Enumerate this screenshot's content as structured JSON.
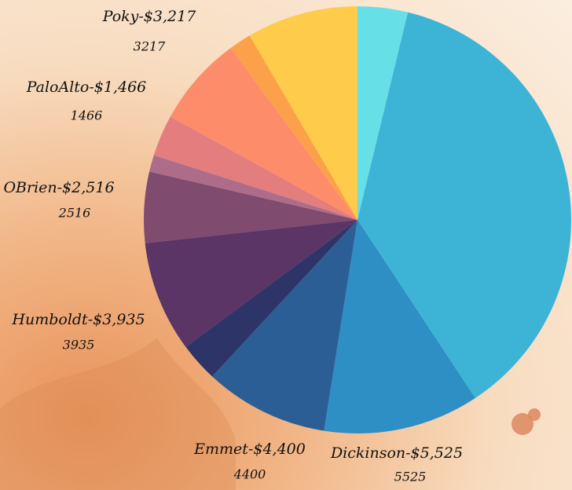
{
  "chart_data": {
    "type": "pie",
    "categories": [
      null,
      null,
      "Dickinson-$5,525",
      "Emmet-$4,400",
      null,
      "Humboldt-$3,935",
      "OBrien-$2,516",
      null,
      "PaloAlto-$1,466",
      "Poky-$3,217",
      null,
      null
    ],
    "values": [
      1775,
      17290,
      5525,
      4400,
      1380,
      3935,
      2516,
      590,
      1466,
      3217,
      790,
      3945
    ],
    "colors": [
      "#66e0e6",
      "#3db4d6",
      "#2e8fc4",
      "#2c5e96",
      "#2c3468",
      "#5a3566",
      "#7f4b6f",
      "#ad6d8a",
      "#e37d7e",
      "#fd8c6b",
      "#fca14a",
      "#fecb4a"
    ]
  }
}
